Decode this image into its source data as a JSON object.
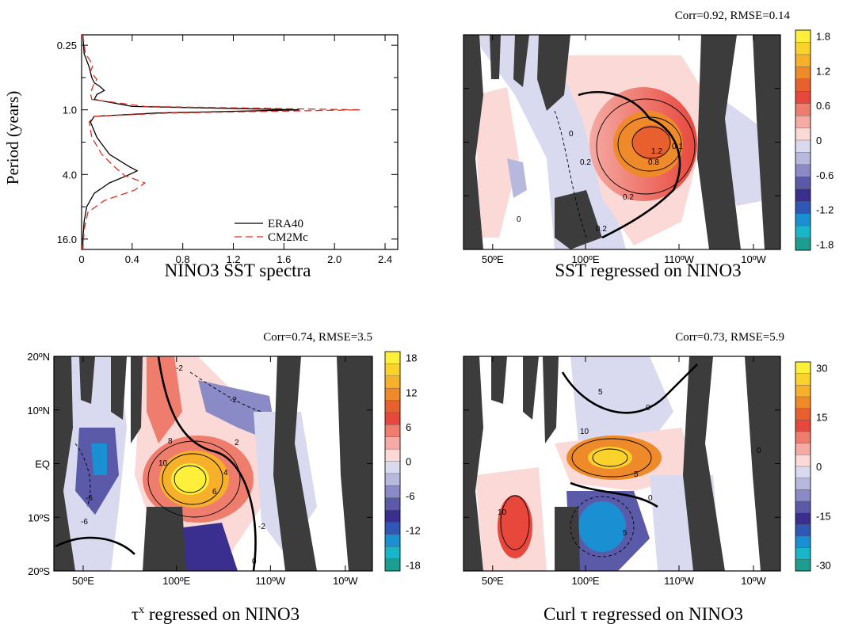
{
  "colors": {
    "land": "#3c3c3c",
    "era40_line": "#000000",
    "cm2mc_line": "#d7301f",
    "palette_neg": [
      "#1b9e8f",
      "#18b6c8",
      "#1a8fd1",
      "#2f57b5",
      "#3a2f8f",
      "#5b5aa8",
      "#8a8ac6",
      "#b6b8dd",
      "#d9daf0"
    ],
    "palette_pos": [
      "#fbd9d7",
      "#f5aaa3",
      "#ef7d6e",
      "#e8473b",
      "#e8602e",
      "#ef8a2a",
      "#f6b02a",
      "#fbd22c",
      "#fef03a"
    ]
  },
  "chart_data": [
    {
      "panel": "spectra",
      "type": "line",
      "title": "NINO3 SST spectra",
      "ylabel": "Period (years)",
      "xlabel": "",
      "xlim": [
        0,
        2.5
      ],
      "x_ticks": [
        "0",
        "0.4",
        "0.8",
        "1.2",
        "1.6",
        "2.0",
        "2.4"
      ],
      "y_scale": "log2",
      "ylim": [
        0.2,
        20
      ],
      "y_ticks": [
        "0.25",
        "1.0",
        "4.0",
        "16.0"
      ],
      "legend_position": "bottom-right",
      "series": [
        {
          "name": "ERA40",
          "style": "solid",
          "points": [
            [
              0.01,
              0.2
            ],
            [
              0.02,
              0.3
            ],
            [
              0.06,
              0.4
            ],
            [
              0.08,
              0.5
            ],
            [
              0.1,
              0.56
            ],
            [
              0.14,
              0.6
            ],
            [
              0.18,
              0.66
            ],
            [
              0.12,
              0.72
            ],
            [
              0.1,
              0.8
            ],
            [
              0.4,
              0.93
            ],
            [
              1.72,
              1.0
            ],
            [
              0.6,
              1.07
            ],
            [
              0.1,
              1.15
            ],
            [
              0.07,
              1.3
            ],
            [
              0.12,
              1.8
            ],
            [
              0.22,
              2.6
            ],
            [
              0.38,
              3.4
            ],
            [
              0.44,
              3.7
            ],
            [
              0.36,
              4.1
            ],
            [
              0.22,
              4.8
            ],
            [
              0.1,
              6.0
            ],
            [
              0.04,
              8.0
            ],
            [
              0.02,
              11.0
            ],
            [
              0.01,
              16.0
            ],
            [
              0.01,
              20.0
            ]
          ]
        },
        {
          "name": "CM2Mc",
          "style": "dashed",
          "points": [
            [
              0.01,
              0.2
            ],
            [
              0.03,
              0.3
            ],
            [
              0.09,
              0.38
            ],
            [
              0.07,
              0.44
            ],
            [
              0.12,
              0.52
            ],
            [
              0.09,
              0.6
            ],
            [
              0.07,
              0.7
            ],
            [
              0.08,
              0.8
            ],
            [
              0.5,
              0.93
            ],
            [
              2.2,
              1.0
            ],
            [
              0.7,
              1.07
            ],
            [
              0.1,
              1.15
            ],
            [
              0.06,
              1.3
            ],
            [
              0.08,
              1.8
            ],
            [
              0.16,
              2.6
            ],
            [
              0.26,
              3.4
            ],
            [
              0.34,
              4.1
            ],
            [
              0.5,
              4.8
            ],
            [
              0.42,
              5.6
            ],
            [
              0.18,
              7.0
            ],
            [
              0.05,
              9.0
            ],
            [
              0.02,
              13.0
            ],
            [
              0.01,
              20.0
            ]
          ]
        }
      ]
    },
    {
      "panel": "sst",
      "type": "heatmap",
      "title": "SST regressed on NINO3",
      "stats": "Corr=0.92, RMSE=0.14",
      "x_ticks": [
        "50ºE",
        "100ºE",
        "110ºW",
        "10ºW"
      ],
      "y_ticks": [],
      "colorbar_ticks": [
        "1.8",
        "1.2",
        "0.6",
        "0",
        "-0.6",
        "-1.2",
        "-1.8"
      ],
      "contour_labels": [
        "0",
        "0.2",
        "1.2",
        "0.8",
        "0.2",
        "0.2",
        "0.1",
        "0"
      ]
    },
    {
      "panel": "taux",
      "type": "heatmap",
      "title_symbol": "τ",
      "title_superscript": "x",
      "title": "regressed on NINO3",
      "stats": "Corr=0.74, RMSE=3.5",
      "x_ticks": [
        "50ºE",
        "100ºE",
        "110ºW",
        "10ºW"
      ],
      "y_ticks": [
        "20ºN",
        "10ºN",
        "EQ",
        "10ºS",
        "20ºS"
      ],
      "colorbar_ticks": [
        "18",
        "12",
        "6",
        "0",
        "-6",
        "-12",
        "-18"
      ],
      "contour_labels": [
        "-2",
        "-2",
        "8",
        "10",
        "4",
        "6",
        "2",
        "-2",
        "0",
        "-6",
        "-6"
      ]
    },
    {
      "panel": "curl",
      "type": "heatmap",
      "title": "Curl τ  regressed on NINO3",
      "stats": "Corr=0.73, RMSE=5.9",
      "x_ticks": [
        "50ºE",
        "100ºE",
        "110ºW",
        "10ºW"
      ],
      "y_ticks": [],
      "colorbar_ticks": [
        "30",
        "15",
        "0",
        "-15",
        "-30"
      ],
      "contour_labels": [
        "0",
        "5",
        "10",
        "5",
        "0",
        "5",
        "10",
        "0"
      ]
    }
  ]
}
